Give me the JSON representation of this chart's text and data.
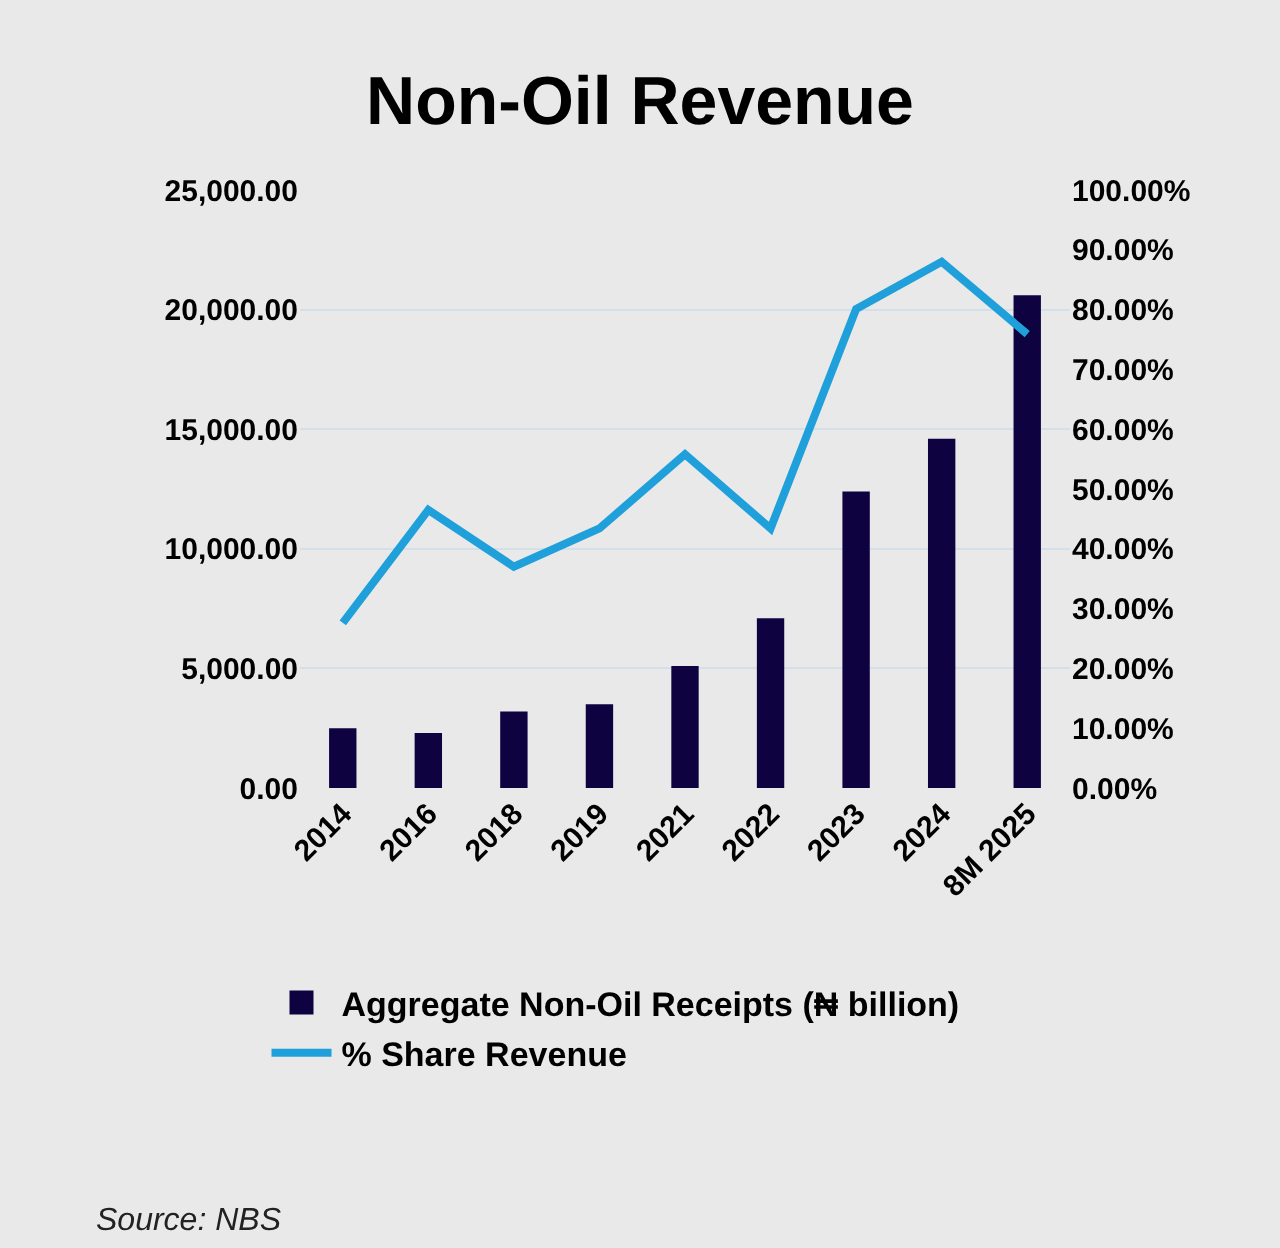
{
  "chart_data": {
    "type": "bar",
    "title": "Non-Oil Revenue",
    "categories": [
      "2014",
      "2016",
      "2018",
      "2019",
      "2021",
      "2022",
      "2023",
      "2024",
      "8M 2025"
    ],
    "series": [
      {
        "name": "Aggregate Non-Oil Receipts (₦ billion)",
        "color": "#0e0340",
        "values": [
          2500,
          2300,
          3200,
          3500,
          5100,
          7100,
          12400,
          14600,
          20600
        ]
      },
      {
        "name": "% Share Revenue",
        "type": "line",
        "axis": "y2",
        "color": "#1fa0db",
        "marker": "none",
        "line_style": "solid",
        "values": [
          27.6,
          46.5,
          37.0,
          43.4,
          55.8,
          43.4,
          80.1,
          88.0,
          75.9
        ]
      }
    ],
    "ylim": [
      0,
      25000
    ],
    "yticks": [
      {
        "value": 0,
        "label": "0.00"
      },
      {
        "value": 5000,
        "label": "5,000.00"
      },
      {
        "value": 10000,
        "label": "10,000.00"
      },
      {
        "value": 15000,
        "label": "15,000.00"
      },
      {
        "value": 20000,
        "label": "20,000.00"
      },
      {
        "value": 25000,
        "label": "25,000.00"
      }
    ],
    "y2lim": [
      0,
      100
    ],
    "y2ticks": [
      {
        "value": 0,
        "label": "0.00%"
      },
      {
        "value": 10,
        "label": "10.00%"
      },
      {
        "value": 20,
        "label": "20.00%"
      },
      {
        "value": 30,
        "label": "30.00%"
      },
      {
        "value": 40,
        "label": "40.00%"
      },
      {
        "value": 50,
        "label": "50.00%"
      },
      {
        "value": 60,
        "label": "60.00%"
      },
      {
        "value": 70,
        "label": "70.00%"
      },
      {
        "value": 80,
        "label": "80.00%"
      },
      {
        "value": 90,
        "label": "90.00%"
      },
      {
        "value": 100,
        "label": "100.00%"
      }
    ],
    "grid": "y",
    "legend": "bottom",
    "annotations": [
      "Source: NBS"
    ]
  }
}
